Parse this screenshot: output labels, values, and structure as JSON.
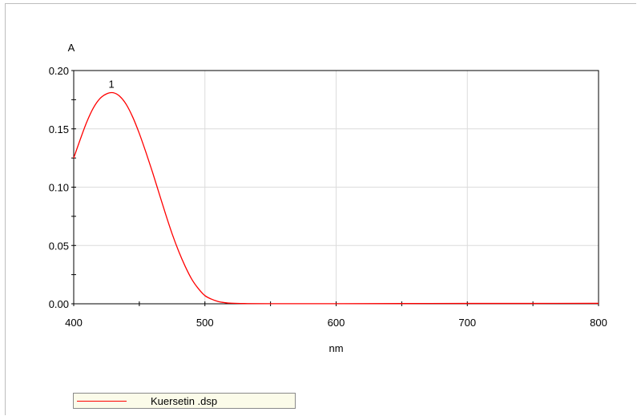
{
  "chart_data": {
    "type": "line",
    "title": "",
    "xlabel": "nm",
    "ylabel": "A",
    "xlim": [
      400,
      800
    ],
    "ylim": [
      0,
      0.2
    ],
    "xticks": [
      400,
      500,
      600,
      700,
      800
    ],
    "xtick_labels": [
      "400",
      "500",
      "600",
      "700",
      "800"
    ],
    "yticks": [
      0,
      0.05,
      0.1,
      0.15,
      0.2
    ],
    "ytick_labels": [
      "0.00",
      "0.05",
      "0.10",
      "0.15",
      "0.20"
    ],
    "grid": true,
    "legend_position": "bottom-left",
    "series": [
      {
        "name": "Kuersetin .dsp",
        "color": "#ff0000",
        "x": [
          400,
          405,
          410,
          415,
          420,
          425,
          430,
          435,
          440,
          445,
          450,
          455,
          460,
          465,
          470,
          475,
          480,
          485,
          490,
          495,
          500,
          505,
          510,
          515,
          520,
          530,
          550,
          600,
          650,
          700,
          750,
          800
        ],
        "y": [
          0.125,
          0.141,
          0.156,
          0.168,
          0.176,
          0.18,
          0.181,
          0.178,
          0.171,
          0.16,
          0.146,
          0.13,
          0.113,
          0.095,
          0.077,
          0.06,
          0.045,
          0.032,
          0.021,
          0.013,
          0.007,
          0.004,
          0.002,
          0.001,
          0.0005,
          0.0002,
          0.0001,
          0.0001,
          0.0002,
          0.0003,
          0.0003,
          0.0004
        ]
      }
    ],
    "annotations": [
      {
        "text": "1",
        "x": 430,
        "y": 0.181
      }
    ]
  }
}
